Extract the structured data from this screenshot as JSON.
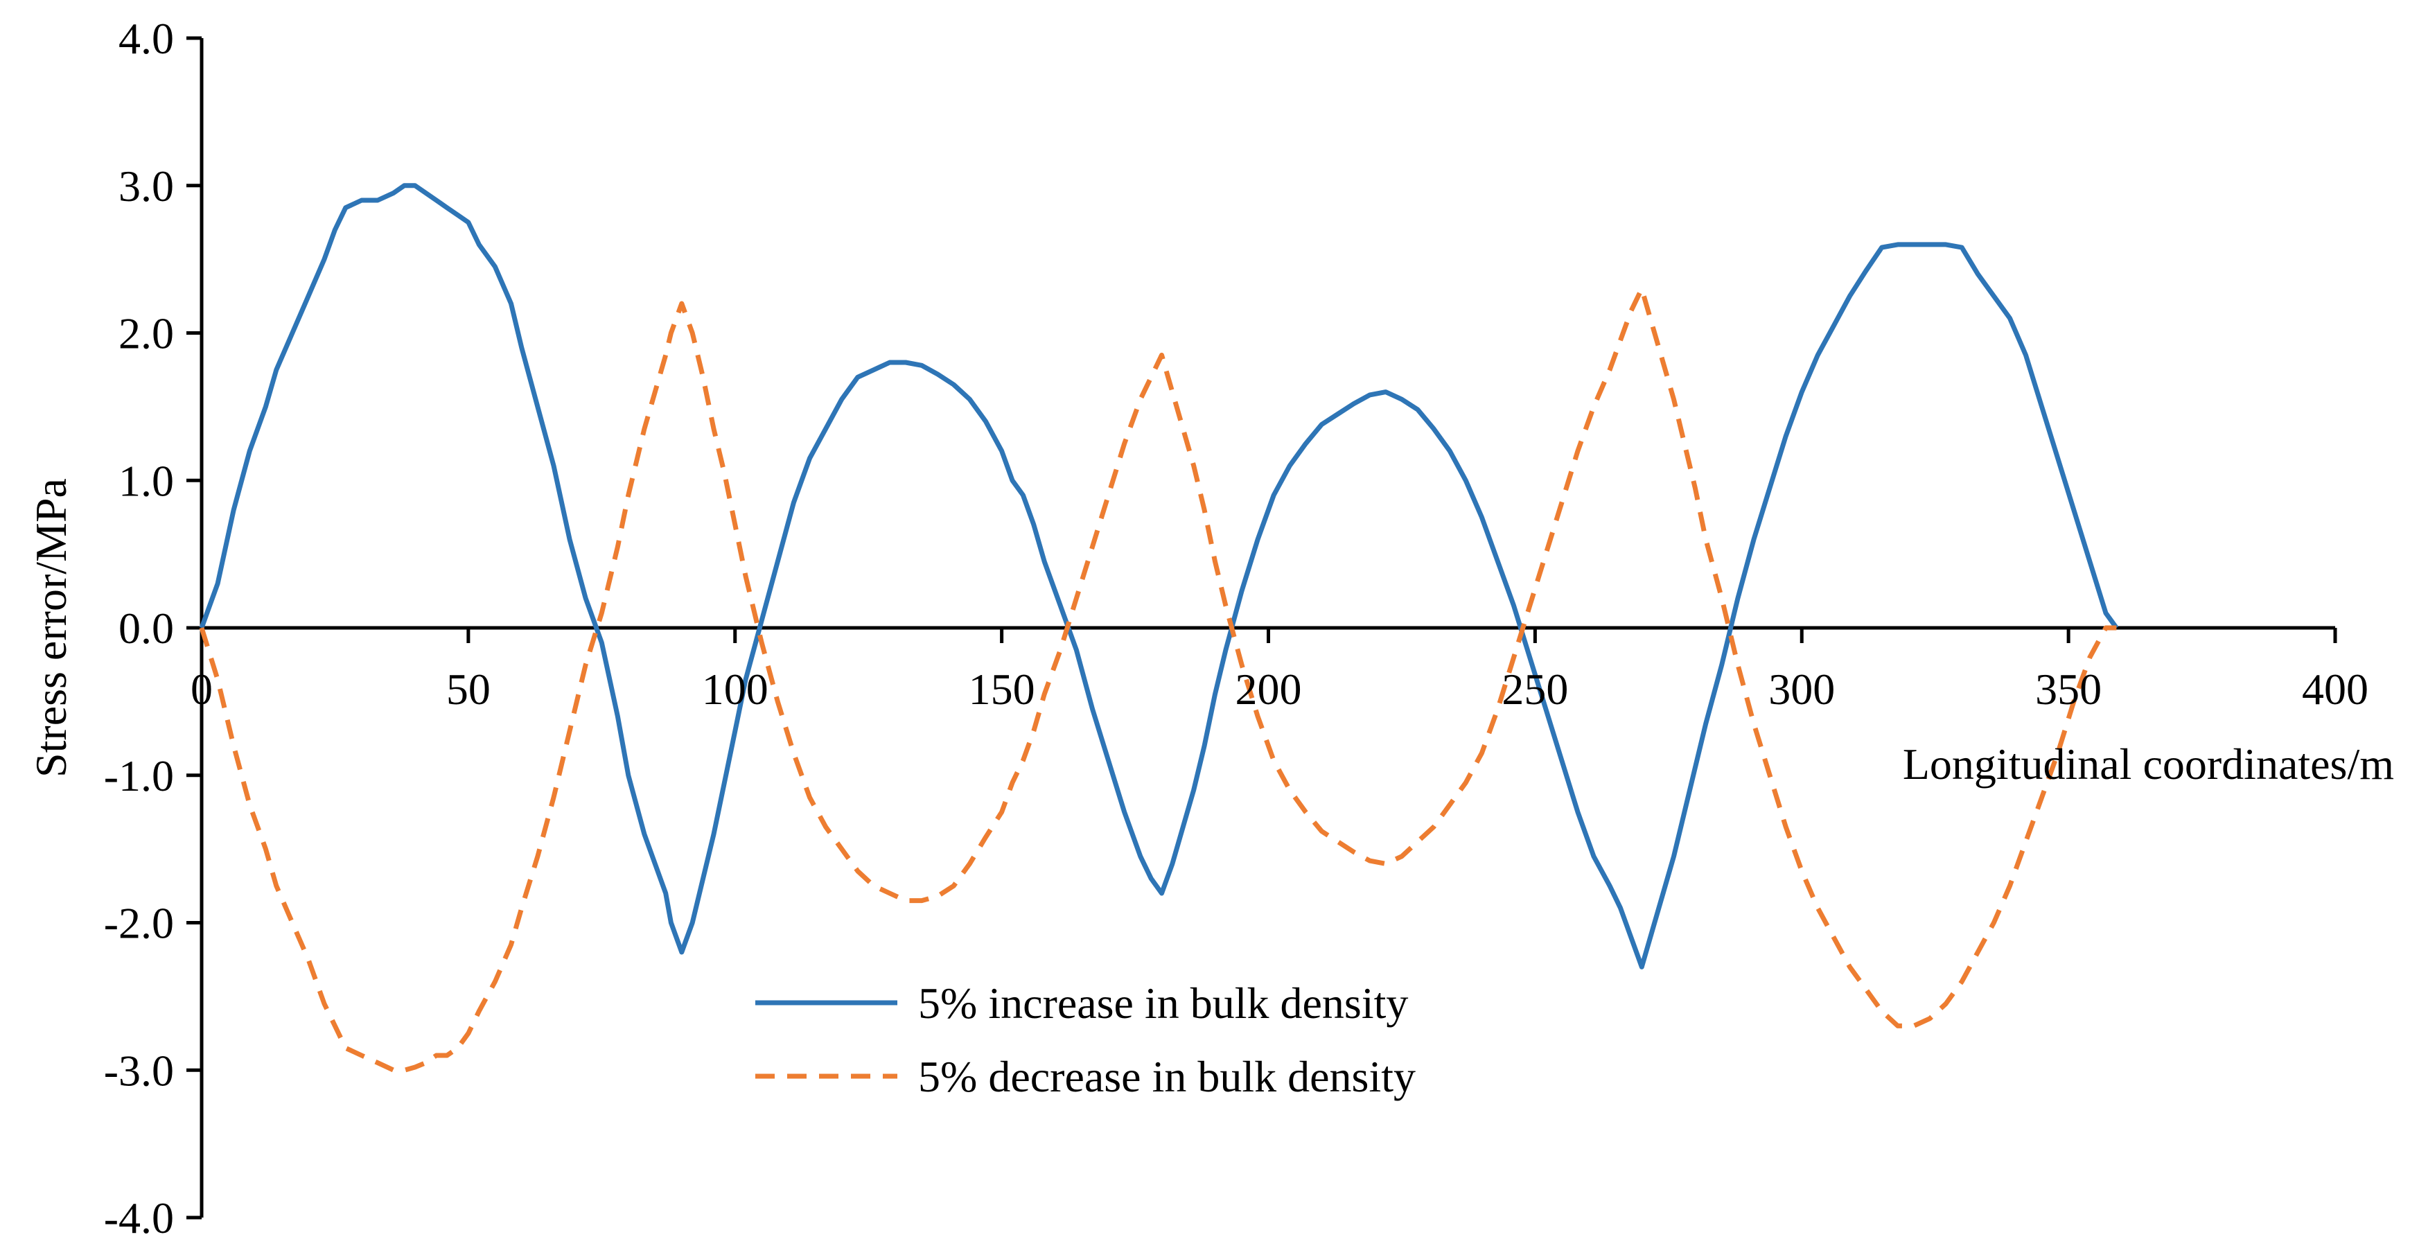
{
  "chart_data": {
    "type": "line",
    "title": "",
    "xlabel": "Longitudinal coordinates/m",
    "ylabel": "Stress error/MPa",
    "xlim": [
      0,
      400
    ],
    "ylim": [
      -4.0,
      4.0
    ],
    "xticks": [
      0,
      50,
      100,
      150,
      200,
      250,
      300,
      350,
      400
    ],
    "yticks": [
      4.0,
      3.0,
      2.0,
      1.0,
      0.0,
      -1.0,
      -2.0,
      -3.0,
      -4.0
    ],
    "xtick_labels": [
      "0",
      "50",
      "100",
      "150",
      "200",
      "250",
      "300",
      "350",
      "400"
    ],
    "ytick_labels": [
      "4.0",
      "3.0",
      "2.0",
      "1.0",
      "0.0",
      "-1.0",
      "-2.0",
      "-3.0",
      "-4.0"
    ],
    "grid": false,
    "legend_position": "center-bottom",
    "series": [
      {
        "name": "5% increase in bulk density",
        "color": "#2E75B6",
        "dash": "solid",
        "x": [
          0,
          3,
          6,
          9,
          12,
          14,
          17,
          20,
          23,
          25,
          27,
          30,
          33,
          36,
          38,
          40,
          42,
          44,
          46,
          48,
          50,
          52,
          55,
          58,
          60,
          63,
          66,
          69,
          72,
          75,
          78,
          80,
          83,
          85,
          87,
          88,
          90,
          92,
          94,
          96,
          98,
          100,
          102,
          105,
          108,
          111,
          114,
          117,
          120,
          123,
          126,
          129,
          132,
          135,
          138,
          141,
          144,
          147,
          150,
          152,
          154,
          156,
          158,
          161,
          164,
          167,
          170,
          173,
          176,
          178,
          180,
          182,
          184,
          186,
          188,
          190,
          192,
          195,
          198,
          201,
          204,
          207,
          210,
          213,
          216,
          219,
          222,
          225,
          228,
          231,
          234,
          237,
          240,
          243,
          246,
          249,
          252,
          255,
          258,
          261,
          264,
          266,
          268,
          270,
          272,
          274,
          276,
          278,
          280,
          282,
          285,
          288,
          291,
          294,
          297,
          300,
          303,
          306,
          309,
          312,
          315,
          318,
          321,
          324,
          327,
          330,
          333,
          336,
          339,
          342,
          345,
          348,
          351,
          354,
          357,
          359
        ],
        "values": [
          0.0,
          0.3,
          0.8,
          1.2,
          1.5,
          1.75,
          2.0,
          2.25,
          2.5,
          2.7,
          2.85,
          2.9,
          2.9,
          2.95,
          3.0,
          3.0,
          2.95,
          2.9,
          2.85,
          2.8,
          2.75,
          2.6,
          2.45,
          2.2,
          1.9,
          1.5,
          1.1,
          0.6,
          0.2,
          -0.1,
          -0.6,
          -1.0,
          -1.4,
          -1.6,
          -1.8,
          -2.0,
          -2.2,
          -2.0,
          -1.7,
          -1.4,
          -1.05,
          -0.7,
          -0.35,
          0.05,
          0.45,
          0.85,
          1.15,
          1.35,
          1.55,
          1.7,
          1.75,
          1.8,
          1.8,
          1.78,
          1.72,
          1.65,
          1.55,
          1.4,
          1.2,
          1.0,
          0.9,
          0.7,
          0.45,
          0.15,
          -0.15,
          -0.55,
          -0.9,
          -1.25,
          -1.55,
          -1.7,
          -1.8,
          -1.6,
          -1.35,
          -1.1,
          -0.8,
          -0.45,
          -0.15,
          0.25,
          0.6,
          0.9,
          1.1,
          1.25,
          1.38,
          1.45,
          1.52,
          1.58,
          1.6,
          1.55,
          1.48,
          1.35,
          1.2,
          1.0,
          0.75,
          0.45,
          0.15,
          -0.2,
          -0.55,
          -0.9,
          -1.25,
          -1.55,
          -1.75,
          -1.9,
          -2.1,
          -2.3,
          -2.05,
          -1.8,
          -1.55,
          -1.25,
          -0.95,
          -0.65,
          -0.25,
          0.2,
          0.6,
          0.95,
          1.3,
          1.6,
          1.85,
          2.05,
          2.25,
          2.42,
          2.58,
          2.6,
          2.6,
          2.6,
          2.6,
          2.58,
          2.4,
          2.25,
          2.1,
          1.85,
          1.5,
          1.15,
          0.8,
          0.45,
          0.1,
          0.0
        ]
      },
      {
        "name": "5% decrease in bulk density",
        "color": "#ED7D31",
        "dash": "dashed",
        "x": [
          0,
          3,
          6,
          9,
          12,
          14,
          17,
          20,
          23,
          25,
          27,
          30,
          33,
          36,
          38,
          40,
          42,
          44,
          46,
          48,
          50,
          52,
          55,
          58,
          60,
          63,
          66,
          69,
          72,
          75,
          78,
          80,
          83,
          85,
          87,
          88,
          90,
          92,
          94,
          96,
          98,
          100,
          102,
          105,
          108,
          111,
          114,
          117,
          120,
          123,
          126,
          129,
          132,
          135,
          138,
          141,
          144,
          147,
          150,
          152,
          154,
          156,
          158,
          161,
          164,
          167,
          170,
          173,
          176,
          178,
          180,
          182,
          184,
          186,
          188,
          190,
          192,
          195,
          198,
          201,
          204,
          207,
          210,
          213,
          216,
          219,
          222,
          225,
          228,
          231,
          234,
          237,
          240,
          243,
          246,
          249,
          252,
          255,
          258,
          261,
          264,
          266,
          268,
          270,
          272,
          274,
          276,
          278,
          280,
          282,
          285,
          288,
          291,
          294,
          297,
          300,
          303,
          306,
          309,
          312,
          315,
          318,
          321,
          324,
          327,
          330,
          333,
          336,
          339,
          342,
          345,
          348,
          351,
          354,
          357,
          359
        ],
        "values": [
          0.0,
          -0.35,
          -0.8,
          -1.2,
          -1.5,
          -1.75,
          -2.0,
          -2.25,
          -2.55,
          -2.7,
          -2.85,
          -2.9,
          -2.95,
          -3.0,
          -3.0,
          -2.98,
          -2.95,
          -2.9,
          -2.9,
          -2.85,
          -2.75,
          -2.6,
          -2.4,
          -2.15,
          -1.9,
          -1.55,
          -1.15,
          -0.7,
          -0.25,
          0.1,
          0.55,
          0.9,
          1.35,
          1.6,
          1.85,
          2.0,
          2.2,
          2.0,
          1.7,
          1.35,
          1.05,
          0.7,
          0.35,
          -0.1,
          -0.5,
          -0.85,
          -1.15,
          -1.35,
          -1.5,
          -1.65,
          -1.75,
          -1.8,
          -1.85,
          -1.85,
          -1.82,
          -1.75,
          -1.6,
          -1.42,
          -1.25,
          -1.05,
          -0.9,
          -0.7,
          -0.45,
          -0.15,
          0.2,
          0.55,
          0.9,
          1.25,
          1.55,
          1.7,
          1.85,
          1.6,
          1.35,
          1.1,
          0.8,
          0.45,
          0.15,
          -0.25,
          -0.6,
          -0.9,
          -1.1,
          -1.25,
          -1.38,
          -1.45,
          -1.52,
          -1.58,
          -1.6,
          -1.55,
          -1.45,
          -1.35,
          -1.2,
          -1.05,
          -0.85,
          -0.55,
          -0.2,
          0.15,
          0.5,
          0.85,
          1.2,
          1.5,
          1.75,
          1.95,
          2.15,
          2.3,
          2.05,
          1.8,
          1.55,
          1.25,
          0.95,
          0.6,
          0.2,
          -0.25,
          -0.65,
          -1.0,
          -1.35,
          -1.65,
          -1.9,
          -2.1,
          -2.3,
          -2.45,
          -2.6,
          -2.7,
          -2.7,
          -2.65,
          -2.55,
          -2.4,
          -2.2,
          -2.0,
          -1.75,
          -1.45,
          -1.15,
          -0.85,
          -0.5,
          -0.2,
          0.0,
          0.0
        ]
      }
    ]
  }
}
